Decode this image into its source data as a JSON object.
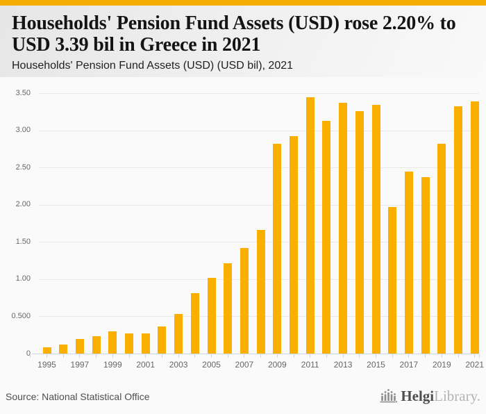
{
  "header": {
    "title_line1": "Households' Pension Fund Assets (USD) rose 2.20% to",
    "title_line2": "USD 3.39 bil in Greece in 2021",
    "subtitle": "Households' Pension Fund Assets (USD) (USD bil), 2021"
  },
  "footer": {
    "source": "Source: National Statistical Office",
    "logo": {
      "name": "helgi-library-logo",
      "text_primary": "Helgi",
      "text_secondary": "Library."
    }
  },
  "colors": {
    "accent_strip": "#F5AB00",
    "bar": "#FAAF01",
    "grid": "#e7e7e7",
    "axis": "#ccd6eb",
    "tick_label": "#666666"
  },
  "chart_data": {
    "type": "bar",
    "title": "Households' Pension Fund Assets (USD) rose 2.20% to USD 3.39 bil in Greece in 2021",
    "subtitle": "Households' Pension Fund Assets (USD) (USD bil), 2021",
    "xlabel": "",
    "ylabel": "",
    "categories": [
      1995,
      1996,
      1997,
      1998,
      1999,
      2000,
      2001,
      2002,
      2003,
      2004,
      2005,
      2006,
      2007,
      2008,
      2009,
      2010,
      2011,
      2012,
      2013,
      2014,
      2015,
      2016,
      2017,
      2018,
      2019,
      2020,
      2021
    ],
    "values": [
      0.08,
      0.12,
      0.2,
      0.23,
      0.3,
      0.27,
      0.27,
      0.36,
      0.53,
      0.81,
      1.02,
      1.21,
      1.42,
      1.66,
      2.82,
      2.92,
      3.44,
      3.13,
      3.37,
      3.26,
      3.34,
      1.97,
      2.45,
      2.37,
      2.82,
      3.32,
      3.39
    ],
    "ylim": [
      0,
      3.5
    ],
    "yticks": [
      0,
      0.5,
      1.0,
      1.5,
      2.0,
      2.5,
      3.0,
      3.5
    ],
    "ytick_labels": [
      "0",
      "0.500",
      "1.00",
      "1.50",
      "2.00",
      "2.50",
      "3.00",
      "3.50"
    ],
    "xtick_labeled_years": [
      1995,
      1997,
      1999,
      2001,
      2003,
      2005,
      2007,
      2009,
      2011,
      2013,
      2015,
      2017,
      2019,
      2021
    ],
    "grid": "horizontal",
    "legend": "none"
  }
}
